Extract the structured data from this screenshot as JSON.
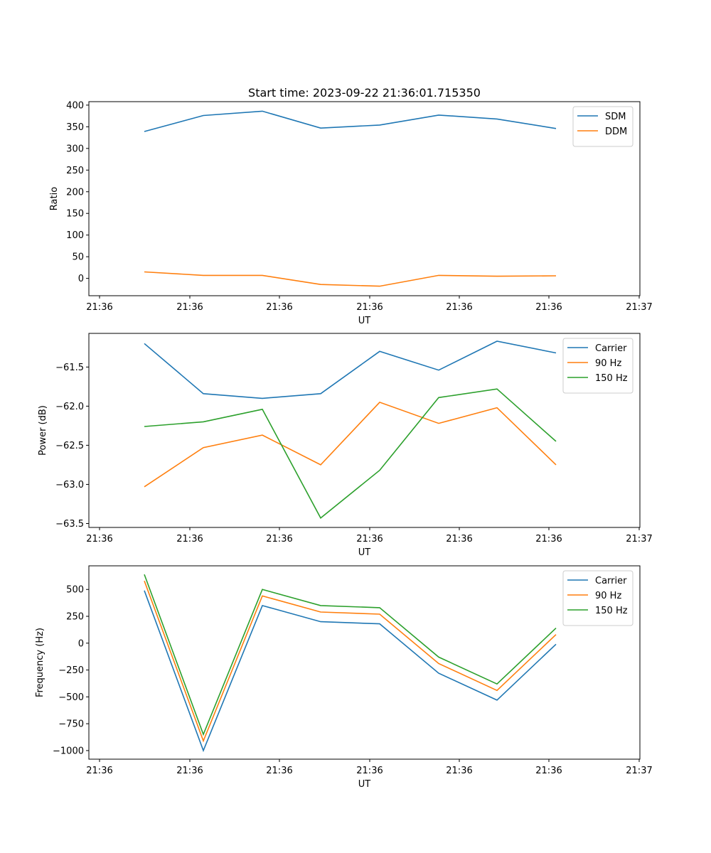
{
  "chart_data": [
    {
      "type": "line",
      "title": "Start time: 2023-09-22 21:36:01.715350",
      "xlabel": "UT",
      "ylabel": "Ratio",
      "xticks": [
        "21:36",
        "21:36",
        "21:36",
        "21:36",
        "21:36",
        "21:36",
        "21:37"
      ],
      "ylim": [
        -40,
        408
      ],
      "yticks": [
        0,
        50,
        100,
        150,
        200,
        250,
        300,
        350,
        400
      ],
      "legend": "top-right",
      "grid": false,
      "series": [
        {
          "name": "SDM",
          "color": "#1f77b4",
          "values": [
            339,
            376,
            386,
            347,
            354,
            377,
            368,
            346
          ]
        },
        {
          "name": "DDM",
          "color": "#ff7f0e",
          "values": [
            15,
            7,
            7,
            -14,
            -18,
            7,
            5,
            6
          ]
        }
      ]
    },
    {
      "type": "line",
      "title": "",
      "xlabel": "UT",
      "ylabel": "Power (dB)",
      "xticks": [
        "21:36",
        "21:36",
        "21:36",
        "21:36",
        "21:36",
        "21:36",
        "21:37"
      ],
      "ylim": [
        -63.55,
        -61.07
      ],
      "yticks": [
        -61.5,
        -62.0,
        -62.5,
        -63.0,
        -63.5
      ],
      "ytick_labels": [
        "−61.5",
        "−62.0",
        "−62.5",
        "−63.0",
        "−63.5"
      ],
      "legend": "top-right",
      "grid": false,
      "series": [
        {
          "name": "Carrier",
          "color": "#1f77b4",
          "values": [
            -61.2,
            -61.84,
            -61.9,
            -61.84,
            -61.3,
            -61.54,
            -61.17,
            -61.32
          ]
        },
        {
          "name": "90 Hz",
          "color": "#ff7f0e",
          "values": [
            -63.03,
            -62.53,
            -62.37,
            -62.75,
            -61.95,
            -62.22,
            -62.02,
            -62.75
          ]
        },
        {
          "name": "150 Hz",
          "color": "#2ca02c",
          "values": [
            -62.26,
            -62.2,
            -62.04,
            -63.43,
            -62.82,
            -61.89,
            -61.78,
            -62.45
          ]
        }
      ]
    },
    {
      "type": "line",
      "title": "",
      "xlabel": "UT",
      "ylabel": "Frequency (Hz)",
      "xticks": [
        "21:36",
        "21:36",
        "21:36",
        "21:36",
        "21:36",
        "21:36",
        "21:37"
      ],
      "ylim": [
        -1080,
        720
      ],
      "yticks": [
        500,
        250,
        0,
        -250,
        -500,
        -750,
        -1000
      ],
      "ytick_labels": [
        "500",
        "250",
        "0",
        "−250",
        "−500",
        "−750",
        "−1000"
      ],
      "legend": "top-right",
      "grid": false,
      "series": [
        {
          "name": "Carrier",
          "color": "#1f77b4",
          "values": [
            490,
            -1000,
            350,
            200,
            180,
            -280,
            -530,
            -10
          ]
        },
        {
          "name": "90 Hz",
          "color": "#ff7f0e",
          "values": [
            580,
            -910,
            440,
            290,
            270,
            -190,
            -440,
            80
          ]
        },
        {
          "name": "150 Hz",
          "color": "#2ca02c",
          "values": [
            640,
            -850,
            500,
            350,
            330,
            -130,
            -380,
            140
          ]
        }
      ]
    }
  ]
}
